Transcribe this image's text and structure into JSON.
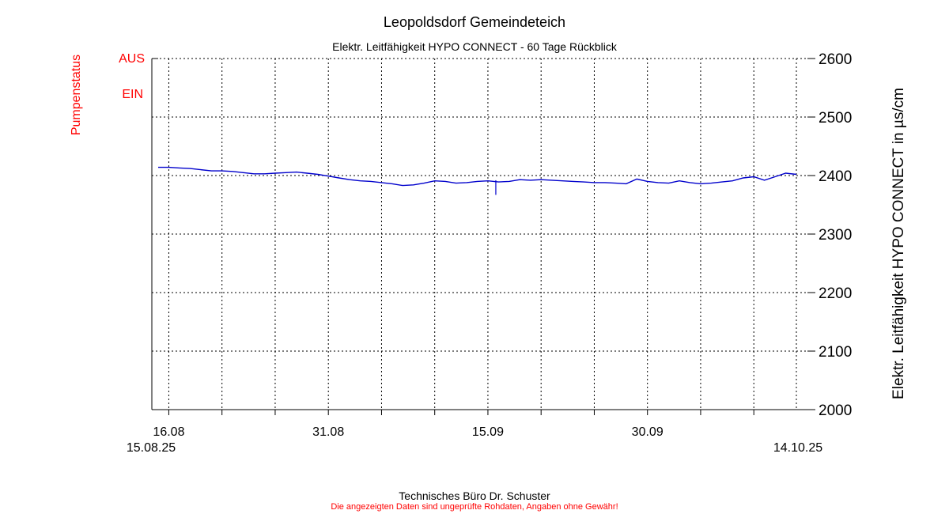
{
  "header": {
    "title": "Leopoldsdorf Gemeindeteich",
    "subtitle": "Elektr. Leitfähigkeit HYPO CONNECT - 60 Tage Rückblick"
  },
  "left_axis": {
    "label": "Pumpenstatus",
    "status_labels": [
      "AUS",
      "EIN"
    ]
  },
  "right_axis": {
    "label": "Elektr. Leitfähigkeit HYPO CONNECT in µs/cm"
  },
  "footer": {
    "company": "Technisches Büro Dr. Schuster",
    "disclaimer": "Die angezeigten Daten sind ungeprüfte Rohdaten, Angaben ohne Gewähr!"
  },
  "colors": {
    "series": "#0000cc",
    "status_text": "#ff0000",
    "grid": "#000000"
  },
  "chart_data": {
    "type": "line",
    "title": "Leopoldsdorf Gemeindeteich",
    "subtitle": "Elektr. Leitfähigkeit HYPO CONNECT - 60 Tage Rückblick",
    "ylabel": "Elektr. Leitfähigkeit HYPO CONNECT in µs/cm",
    "ylabel_left": "Pumpenstatus",
    "xlim": [
      "2025-08-15",
      "2025-10-14"
    ],
    "ylim": [
      2000,
      2600
    ],
    "yticks": [
      2000,
      2100,
      2200,
      2300,
      2400,
      2500,
      2600
    ],
    "xticks": [
      {
        "date": "2025-08-16",
        "label": "16.08"
      },
      {
        "date": "2025-08-31",
        "label": "31.08"
      },
      {
        "date": "2025-09-15",
        "label": "15.09"
      },
      {
        "date": "2025-09-30",
        "label": "30.09"
      }
    ],
    "minor_xticks": [
      "2025-08-21",
      "2025-08-26",
      "2025-09-05",
      "2025-09-10",
      "2025-09-20",
      "2025-09-25",
      "2025-10-05",
      "2025-10-10"
    ],
    "start_label": "15.08.25",
    "end_label": "14.10.25",
    "grid": true,
    "series": [
      {
        "color": "#0000cc",
        "x": [
          "2025-08-15",
          "2025-08-16",
          "2025-08-17",
          "2025-08-18",
          "2025-08-19",
          "2025-08-20",
          "2025-08-21",
          "2025-08-22",
          "2025-08-23",
          "2025-08-24",
          "2025-08-25",
          "2025-08-26",
          "2025-08-27",
          "2025-08-28",
          "2025-08-29",
          "2025-08-30",
          "2025-08-31",
          "2025-09-01",
          "2025-09-02",
          "2025-09-03",
          "2025-09-04",
          "2025-09-05",
          "2025-09-06",
          "2025-09-07",
          "2025-09-08",
          "2025-09-09",
          "2025-09-10",
          "2025-09-11",
          "2025-09-12",
          "2025-09-13",
          "2025-09-14",
          "2025-09-15",
          "2025-09-16",
          "2025-09-17",
          "2025-09-18",
          "2025-09-19",
          "2025-09-20",
          "2025-09-21",
          "2025-09-22",
          "2025-09-23",
          "2025-09-24",
          "2025-09-25",
          "2025-09-26",
          "2025-09-27",
          "2025-09-28",
          "2025-09-29",
          "2025-09-30",
          "2025-10-01",
          "2025-10-02",
          "2025-10-03",
          "2025-10-04",
          "2025-10-05",
          "2025-10-06",
          "2025-10-07",
          "2025-10-08",
          "2025-10-09",
          "2025-10-10",
          "2025-10-11",
          "2025-10-12",
          "2025-10-13",
          "2025-10-14"
        ],
        "values": [
          2414,
          2414,
          2413,
          2412,
          2410,
          2408,
          2408,
          2407,
          2405,
          2403,
          2403,
          2404,
          2405,
          2406,
          2404,
          2402,
          2399,
          2396,
          2393,
          2391,
          2390,
          2388,
          2386,
          2383,
          2384,
          2387,
          2391,
          2390,
          2387,
          2388,
          2390,
          2391,
          2389,
          2390,
          2393,
          2392,
          2393,
          2392,
          2391,
          2390,
          2389,
          2388,
          2388,
          2387,
          2386,
          2394,
          2390,
          2388,
          2387,
          2391,
          2388,
          2386,
          2387,
          2389,
          2391,
          2396,
          2398,
          2392,
          2398,
          2404,
          2402
        ]
      }
    ],
    "annotations": [
      {
        "date": "2025-09-15",
        "value": 2367,
        "note": "dip"
      }
    ]
  }
}
